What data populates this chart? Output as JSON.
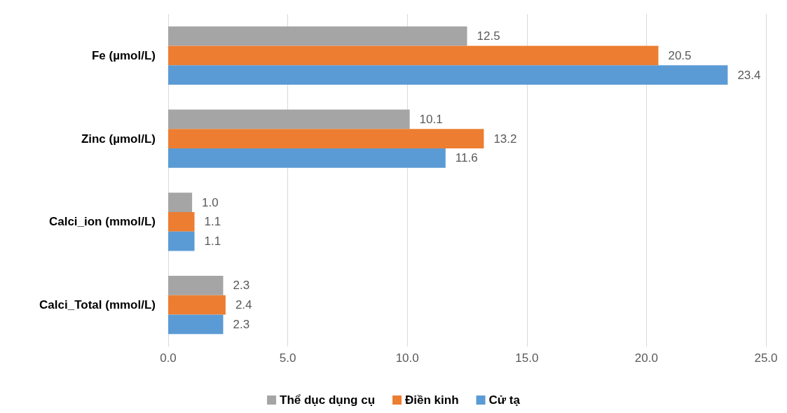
{
  "chart_data": {
    "type": "bar",
    "orientation": "horizontal",
    "categories": [
      "Fe (µmol/L)",
      "Zinc (µmol/L)",
      "Calci_ion (mmol/L)",
      "Calci_Total (mmol/L)"
    ],
    "series": [
      {
        "name": "Thể dục dụng cụ",
        "color": "#a5a5a5",
        "values": [
          12.5,
          10.1,
          1.0,
          2.3
        ],
        "value_labels": [
          "12.5",
          "10.1",
          "1.0",
          "2.3"
        ]
      },
      {
        "name": "Điền kinh",
        "color": "#ed7d31",
        "values": [
          20.5,
          13.2,
          1.1,
          2.4
        ],
        "value_labels": [
          "20.5",
          "13.2",
          "1.1",
          "2.4"
        ]
      },
      {
        "name": "Cử tạ",
        "color": "#5b9bd5",
        "values": [
          23.4,
          11.6,
          1.1,
          2.3
        ],
        "value_labels": [
          "23.4",
          "11.6",
          "1.1",
          "2.3"
        ]
      }
    ],
    "xlim": [
      0,
      25
    ],
    "xticks": [
      {
        "value": 0,
        "label": "0.0"
      },
      {
        "value": 5,
        "label": "5.0"
      },
      {
        "value": 10,
        "label": "10.0"
      },
      {
        "value": 15,
        "label": "15.0"
      },
      {
        "value": 20,
        "label": "20.0"
      },
      {
        "value": 25,
        "label": "25.0"
      }
    ],
    "grid": "x",
    "legend": "bottom"
  }
}
